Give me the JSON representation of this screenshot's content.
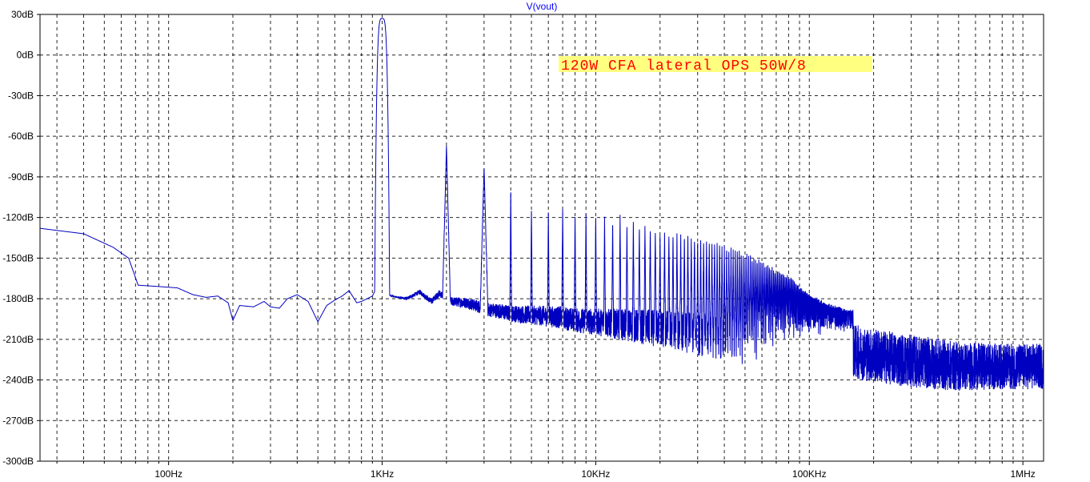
{
  "chart_data": {
    "type": "line",
    "title": "V(vout)",
    "xlabel": "",
    "ylabel": "",
    "x_scale": "log",
    "xlim": [
      25,
      1250000
    ],
    "ylim": [
      -300,
      30
    ],
    "grid": true,
    "x_ticks": [
      {
        "value": 100,
        "label": "100Hz"
      },
      {
        "value": 1000,
        "label": "1KHz"
      },
      {
        "value": 10000,
        "label": "10KHz"
      },
      {
        "value": 100000,
        "label": "100KHz"
      },
      {
        "value": 1000000,
        "label": "1MHz"
      }
    ],
    "y_ticks": [
      {
        "value": 30,
        "label": "30dB"
      },
      {
        "value": 0,
        "label": "0dB"
      },
      {
        "value": -30,
        "label": "-30dB"
      },
      {
        "value": -60,
        "label": "-60dB"
      },
      {
        "value": -90,
        "label": "-90dB"
      },
      {
        "value": -120,
        "label": "-120dB"
      },
      {
        "value": -150,
        "label": "-150dB"
      },
      {
        "value": -180,
        "label": "-180dB"
      },
      {
        "value": -210,
        "label": "-210dB"
      },
      {
        "value": -240,
        "label": "-240dB"
      },
      {
        "value": -270,
        "label": "-270dB"
      },
      {
        "value": -300,
        "label": "-300dB"
      }
    ],
    "annotation": {
      "text": "120W CFA lateral OPS 50W/8",
      "background": "#ffff80",
      "color": "#ff0000"
    },
    "colors": {
      "trace": "#0000c0",
      "title": "#0000ff",
      "grid": "#000000",
      "axis": "#000000"
    },
    "series": [
      {
        "baseline": [
          [
            25,
            -128
          ],
          [
            40,
            -132
          ],
          [
            55,
            -142
          ],
          [
            65,
            -150
          ],
          [
            72,
            -170
          ],
          [
            90,
            -171
          ],
          [
            110,
            -172
          ],
          [
            130,
            -177
          ],
          [
            150,
            -179
          ],
          [
            170,
            -178
          ],
          [
            190,
            -183
          ],
          [
            200,
            -196
          ],
          [
            215,
            -185
          ],
          [
            250,
            -186
          ],
          [
            280,
            -182
          ],
          [
            300,
            -186
          ],
          [
            330,
            -187
          ],
          [
            360,
            -180
          ],
          [
            400,
            -177
          ],
          [
            450,
            -182
          ],
          [
            500,
            -197
          ],
          [
            550,
            -185
          ],
          [
            600,
            -181
          ],
          [
            650,
            -178
          ],
          [
            700,
            -174
          ],
          [
            760,
            -183
          ],
          [
            800,
            -182
          ],
          [
            850,
            -180
          ],
          [
            900,
            -178
          ],
          [
            940,
            -172
          ],
          [
            1100,
            -178
          ],
          [
            1300,
            -180
          ],
          [
            1500,
            -175
          ],
          [
            1700,
            -182
          ],
          [
            1850,
            -176
          ],
          [
            2100,
            -182
          ],
          [
            2500,
            -183
          ],
          [
            3100,
            -188
          ],
          [
            3500,
            -189
          ],
          [
            4000,
            -191
          ],
          [
            5000,
            -192
          ],
          [
            6000,
            -193
          ],
          [
            7000,
            -194
          ],
          [
            8000,
            -196
          ],
          [
            10000,
            -197
          ],
          [
            15000,
            -200
          ],
          [
            20000,
            -202
          ],
          [
            30000,
            -206
          ],
          [
            40000,
            -209
          ],
          [
            50000,
            -212
          ],
          [
            70000,
            -214
          ],
          [
            100000,
            -216
          ],
          [
            150000,
            -218
          ],
          [
            200000,
            -222
          ],
          [
            300000,
            -226
          ],
          [
            500000,
            -230
          ],
          [
            700000,
            -230
          ],
          [
            1000000,
            -230
          ],
          [
            1250000,
            -230
          ]
        ],
        "noise_envelope": [
          [
            25,
            0
          ],
          [
            1000,
            0
          ],
          [
            2000,
            3
          ],
          [
            3000,
            5
          ],
          [
            5000,
            7
          ],
          [
            10000,
            10
          ],
          [
            20000,
            14
          ],
          [
            50000,
            18
          ],
          [
            100000,
            20
          ],
          [
            200000,
            20
          ],
          [
            400000,
            19
          ],
          [
            700000,
            17
          ],
          [
            1250000,
            17
          ]
        ],
        "harmonics": [
          {
            "freq": 1000,
            "level": 27
          },
          {
            "freq": 2000,
            "level": -67
          },
          {
            "freq": 3000,
            "level": -83
          },
          {
            "freq": 4000,
            "level": -96
          },
          {
            "freq": 5000,
            "level": -113
          },
          {
            "freq": 6000,
            "level": -115
          },
          {
            "freq": 7000,
            "level": -113
          },
          {
            "freq": 8000,
            "level": -118
          },
          {
            "freq": 9000,
            "level": -116
          },
          {
            "freq": 10000,
            "level": -118
          },
          {
            "freq": 11000,
            "level": -119
          },
          {
            "freq": 12000,
            "level": -121
          },
          {
            "freq": 13000,
            "level": -118
          },
          {
            "freq": 14000,
            "level": -124
          },
          {
            "freq": 15000,
            "level": -123
          },
          {
            "freq": 16000,
            "level": -126
          },
          {
            "freq": 17000,
            "level": -125
          },
          {
            "freq": 18000,
            "level": -127
          },
          {
            "freq": 19000,
            "level": -128
          },
          {
            "freq": 20000,
            "level": -130
          },
          {
            "freq": 25000,
            "level": -132
          },
          {
            "freq": 30000,
            "level": -135
          },
          {
            "freq": 40000,
            "level": -140
          },
          {
            "freq": 50000,
            "level": -146
          },
          {
            "freq": 60000,
            "level": -152
          },
          {
            "freq": 70000,
            "level": -158
          },
          {
            "freq": 80000,
            "level": -163
          },
          {
            "freq": 90000,
            "level": -170
          },
          {
            "freq": 100000,
            "level": -176
          },
          {
            "freq": 120000,
            "level": -183
          },
          {
            "freq": 150000,
            "level": -188
          }
        ],
        "harmonic_spacing_hz": 1000,
        "harmonic_limit_hz": 160000
      }
    ]
  }
}
